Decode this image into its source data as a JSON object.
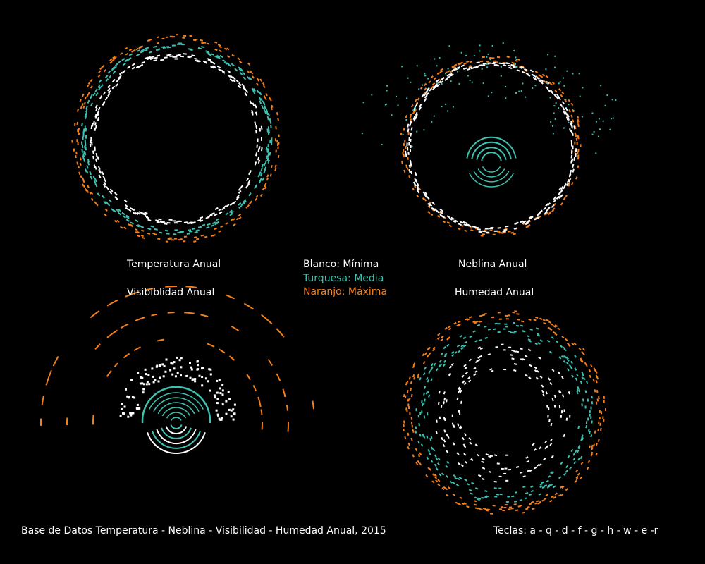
{
  "colors": {
    "background": "#000000",
    "minimum": "#ffffff",
    "mean": "#3fc1b1",
    "maximum": "#f27f1c",
    "text": "#ffffff"
  },
  "legend": {
    "minimum": "Blanco: Mínima",
    "mean": "Turquesa: Media",
    "maximum": "Naranjo: Máxima"
  },
  "footer": {
    "title": "Base de Datos Temperatura - Neblina - Visibilidad - Humedad Anual, 2015",
    "keys": "Teclas: a - q - d - f - g - h - w - e -r"
  },
  "chart_data": [
    {
      "type": "scatter",
      "layout": "radial-annual",
      "title": "Temperatura Anual",
      "series": [
        {
          "name": "Mínima",
          "color": "#ffffff"
        },
        {
          "name": "Media",
          "color": "#3fc1b1"
        },
        {
          "name": "Máxima",
          "color": "#f27f1c"
        }
      ]
    },
    {
      "type": "scatter",
      "layout": "radial-annual",
      "title": "Neblina Anual",
      "series": [
        {
          "name": "Mínima",
          "color": "#ffffff"
        },
        {
          "name": "Media",
          "color": "#3fc1b1"
        },
        {
          "name": "Máxima",
          "color": "#f27f1c"
        }
      ]
    },
    {
      "type": "scatter",
      "layout": "radial-annual",
      "title": "Visibiblidad Anual",
      "series": [
        {
          "name": "Mínima",
          "color": "#ffffff"
        },
        {
          "name": "Media",
          "color": "#3fc1b1"
        },
        {
          "name": "Máxima",
          "color": "#f27f1c"
        }
      ]
    },
    {
      "type": "scatter",
      "layout": "radial-annual",
      "title": "Humedad Anual",
      "series": [
        {
          "name": "Mínima",
          "color": "#ffffff"
        },
        {
          "name": "Media",
          "color": "#3fc1b1"
        },
        {
          "name": "Máxima",
          "color": "#f27f1c"
        }
      ]
    }
  ]
}
